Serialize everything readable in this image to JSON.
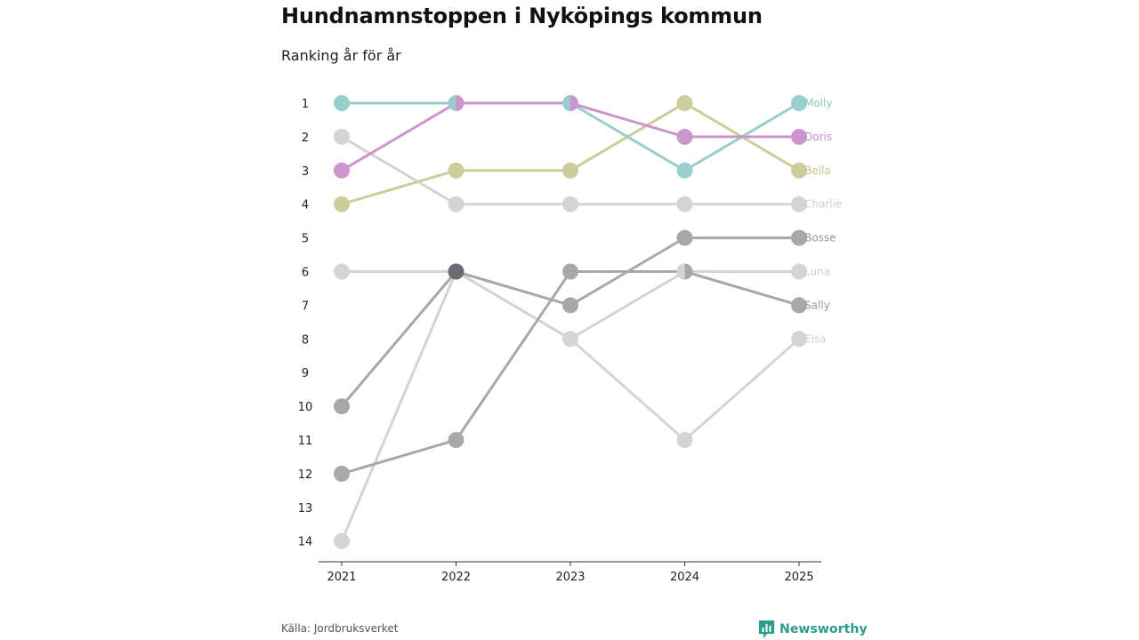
{
  "header": {
    "title": "Hundnamnstoppen i Nyköpings kommun",
    "subtitle": "Ranking år för år"
  },
  "footer": {
    "source": "Källa: Jordbruksverket",
    "brand": "Newsworthy",
    "brand_color": "#2a9d8f"
  },
  "chart_data": {
    "type": "line",
    "title": "Hundnamnstoppen i Nyköpings kommun",
    "subtitle": "Ranking år för år",
    "xlabel": "",
    "ylabel": "",
    "x": [
      "2021",
      "2022",
      "2023",
      "2024",
      "2025"
    ],
    "y_ticks": [
      "1",
      "2",
      "3",
      "4",
      "5",
      "6",
      "7",
      "8",
      "9",
      "10",
      "11",
      "12",
      "13",
      "14"
    ],
    "ylim": [
      1,
      14
    ],
    "y_inverted": true,
    "overlap_color": "#6b6b73",
    "series": [
      {
        "name": "Elsa",
        "values": [
          14,
          6,
          8,
          11,
          8
        ],
        "color": "#d4d4d4",
        "label_color": "#cfcfcf"
      },
      {
        "name": "Luna",
        "values": [
          6,
          6,
          8,
          6,
          6
        ],
        "color": "#d4d4d4",
        "label_color": "#cfcfcf"
      },
      {
        "name": "Charlie",
        "values": [
          2,
          4,
          4,
          4,
          4
        ],
        "color": "#d4d4d4",
        "label_color": "#cfcfcf"
      },
      {
        "name": "Sally",
        "values": [
          12,
          11,
          6,
          6,
          7
        ],
        "color": "#a8a8a8",
        "label_color": "#9a9a9a"
      },
      {
        "name": "Bosse",
        "values": [
          10,
          6,
          7,
          5,
          5
        ],
        "color": "#a8a8a8",
        "label_color": "#9a9a9a"
      },
      {
        "name": "Bella",
        "values": [
          4,
          3,
          3,
          1,
          3
        ],
        "color": "#cdcd9c",
        "label_color": "#c4c48e"
      },
      {
        "name": "Molly",
        "values": [
          1,
          1,
          1,
          3,
          1
        ],
        "color": "#98cfcc",
        "label_color": "#8ecbc8"
      },
      {
        "name": "Doris",
        "values": [
          3,
          1,
          1,
          2,
          2
        ],
        "color": "#cc96cc",
        "label_color": "#c58fc5"
      }
    ]
  }
}
